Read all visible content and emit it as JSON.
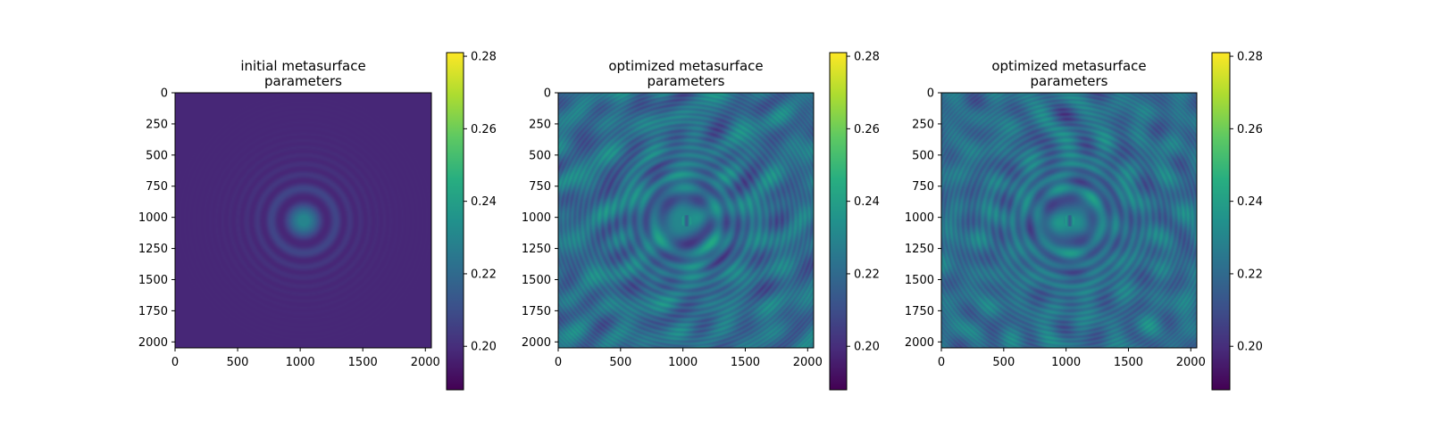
{
  "chart_data": [
    {
      "type": "heatmap",
      "title": [
        "initial metasurface",
        "parameters"
      ],
      "pattern": "initial",
      "colormap": "viridis",
      "x_ticks": [
        0,
        500,
        1000,
        1500,
        2000
      ],
      "y_ticks": [
        0,
        250,
        500,
        750,
        1000,
        1250,
        1500,
        1750,
        2000
      ],
      "xlim": [
        0,
        2048
      ],
      "ylim": [
        2048,
        0
      ],
      "colorbar": {
        "ticks": [
          0.2,
          0.22,
          0.24,
          0.26,
          0.28
        ],
        "tick_labels": [
          "0.20",
          "0.22",
          "0.24",
          "0.26",
          "0.28"
        ],
        "range": [
          0.188,
          0.281
        ]
      }
    },
    {
      "type": "heatmap",
      "title": [
        "optimized metasurface",
        "parameters"
      ],
      "pattern": "optimized",
      "colormap": "viridis",
      "x_ticks": [
        0,
        500,
        1000,
        1500,
        2000
      ],
      "y_ticks": [
        0,
        250,
        500,
        750,
        1000,
        1250,
        1500,
        1750,
        2000
      ],
      "xlim": [
        0,
        2048
      ],
      "ylim": [
        2048,
        0
      ],
      "colorbar": {
        "ticks": [
          0.2,
          0.22,
          0.24,
          0.26,
          0.28
        ],
        "tick_labels": [
          "0.20",
          "0.22",
          "0.24",
          "0.26",
          "0.28"
        ],
        "range": [
          0.188,
          0.281
        ]
      }
    },
    {
      "type": "heatmap",
      "title": [
        "optimized metasurface",
        "parameters"
      ],
      "pattern": "optimized",
      "colormap": "viridis",
      "x_ticks": [
        0,
        500,
        1000,
        1500,
        2000
      ],
      "y_ticks": [
        0,
        250,
        500,
        750,
        1000,
        1250,
        1500,
        1750,
        2000
      ],
      "xlim": [
        0,
        2048
      ],
      "ylim": [
        2048,
        0
      ],
      "colorbar": {
        "ticks": [
          0.2,
          0.22,
          0.24,
          0.26,
          0.28
        ],
        "tick_labels": [
          "0.20",
          "0.22",
          "0.24",
          "0.26",
          "0.28"
        ],
        "range": [
          0.188,
          0.281
        ]
      }
    }
  ]
}
